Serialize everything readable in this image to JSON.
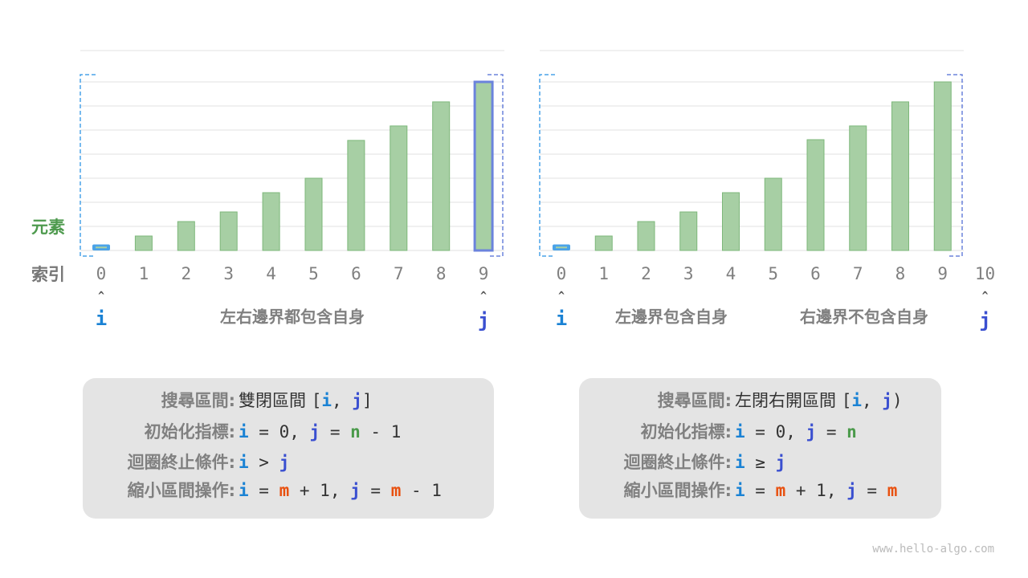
{
  "colors": {
    "bar_fill": "#a7cfa4",
    "bar_stroke": "#7db77a",
    "i_color": "#1a82d4",
    "j_color": "#3a4fd0",
    "n_color": "#4a9a4a",
    "m_color": "#e8500f",
    "text": "#333333",
    "label_gray": "#808080",
    "element_green": "#4e9a4e",
    "box_bg": "#e4e4e4",
    "grid": "#e2e2e2",
    "i_bracket": "#4aa3e8",
    "j_bracket": "#6b83dc"
  },
  "labels": {
    "elements": "元素",
    "index": "索引"
  },
  "chart_data": [
    {
      "type": "bar",
      "categories": [
        "0",
        "1",
        "2",
        "3",
        "4",
        "5",
        "6",
        "7",
        "8",
        "9"
      ],
      "values": [
        0.25,
        0.6,
        1.2,
        1.6,
        2.4,
        3.0,
        4.57,
        5.17,
        6.17,
        7.0
      ],
      "ylim": [
        0,
        8
      ],
      "grid": true,
      "extra_index": null,
      "i_index": 0,
      "j_index": 9,
      "i_label": "i",
      "j_label": "j",
      "captions": [
        "左右邊界都包含自身"
      ]
    },
    {
      "type": "bar",
      "categories": [
        "0",
        "1",
        "2",
        "3",
        "4",
        "5",
        "6",
        "7",
        "8",
        "9"
      ],
      "values": [
        0.25,
        0.6,
        1.2,
        1.6,
        2.4,
        3.0,
        4.6,
        5.17,
        6.17,
        7.0
      ],
      "ylim": [
        0,
        8
      ],
      "grid": true,
      "extra_index": "10",
      "i_index": 0,
      "j_index": 10,
      "i_label": "i",
      "j_label": "j",
      "captions": [
        "左邊界包含自身",
        "右邊界不包含自身"
      ]
    }
  ],
  "panels": [
    {
      "rows": [
        {
          "label": "搜尋區間:",
          "tokens": [
            {
              "t": "雙閉區間 ",
              "c": "cn"
            },
            {
              "t": "[",
              "c": "p"
            },
            {
              "t": "i",
              "c": "i"
            },
            {
              "t": ", ",
              "c": "p"
            },
            {
              "t": "j",
              "c": "j"
            },
            {
              "t": "]",
              "c": "p"
            }
          ]
        },
        {
          "label": "初始化指標:",
          "tokens": [
            {
              "t": "i",
              "c": "i"
            },
            {
              "t": " = 0, ",
              "c": "p"
            },
            {
              "t": "j",
              "c": "j"
            },
            {
              "t": " = ",
              "c": "p"
            },
            {
              "t": "n",
              "c": "n"
            },
            {
              "t": " - 1",
              "c": "p"
            }
          ]
        },
        {
          "label": "迴圈終止條件:",
          "tokens": [
            {
              "t": "i",
              "c": "i"
            },
            {
              "t": " > ",
              "c": "p"
            },
            {
              "t": "j",
              "c": "j"
            }
          ]
        },
        {
          "label": "縮小區間操作:",
          "tokens": [
            {
              "t": "i",
              "c": "i"
            },
            {
              "t": " = ",
              "c": "p"
            },
            {
              "t": "m",
              "c": "m"
            },
            {
              "t": " + 1, ",
              "c": "p"
            },
            {
              "t": "j",
              "c": "j"
            },
            {
              "t": " = ",
              "c": "p"
            },
            {
              "t": "m",
              "c": "m"
            },
            {
              "t": " - 1",
              "c": "p"
            }
          ]
        }
      ]
    },
    {
      "rows": [
        {
          "label": "搜尋區間:",
          "tokens": [
            {
              "t": "左閉右開區間 ",
              "c": "cn"
            },
            {
              "t": "[",
              "c": "p"
            },
            {
              "t": "i",
              "c": "i"
            },
            {
              "t": ", ",
              "c": "p"
            },
            {
              "t": "j",
              "c": "j"
            },
            {
              "t": ")",
              "c": "p"
            }
          ]
        },
        {
          "label": "初始化指標:",
          "tokens": [
            {
              "t": "i",
              "c": "i"
            },
            {
              "t": " = 0, ",
              "c": "p"
            },
            {
              "t": "j",
              "c": "j"
            },
            {
              "t": " = ",
              "c": "p"
            },
            {
              "t": "n",
              "c": "n"
            }
          ]
        },
        {
          "label": "迴圈終止條件:",
          "tokens": [
            {
              "t": "i",
              "c": "i"
            },
            {
              "t": " ≥ ",
              "c": "p"
            },
            {
              "t": "j",
              "c": "j"
            }
          ]
        },
        {
          "label": "縮小區間操作:",
          "tokens": [
            {
              "t": "i",
              "c": "i"
            },
            {
              "t": " = ",
              "c": "p"
            },
            {
              "t": "m",
              "c": "m"
            },
            {
              "t": " + 1, ",
              "c": "p"
            },
            {
              "t": "j",
              "c": "j"
            },
            {
              "t": " = ",
              "c": "p"
            },
            {
              "t": "m",
              "c": "m"
            }
          ]
        }
      ]
    }
  ],
  "watermark": "www.hello-algo.com"
}
